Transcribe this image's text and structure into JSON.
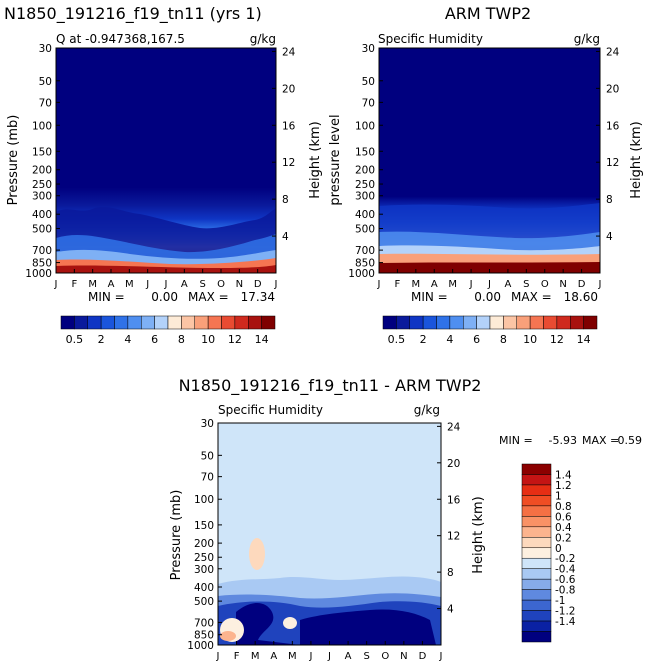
{
  "chart_data": [
    {
      "type": "heatmap",
      "title": "N1850_191216_f19_tn11 (yrs 1)",
      "subtitle_left": "Q at -0.947368,167.5",
      "subtitle_right": "g/kg",
      "ylabel": "Pressure (mb)",
      "y2label": "Height (km)",
      "months": [
        "J",
        "F",
        "M",
        "A",
        "M",
        "J",
        "J",
        "A",
        "S",
        "O",
        "N",
        "D",
        "J"
      ],
      "pressure_ticks": [
        "30",
        "50",
        "70",
        "100",
        "150",
        "200",
        "250",
        "300",
        "400",
        "500",
        "700",
        "850",
        "1000"
      ],
      "pressure_values": [
        30,
        50,
        70,
        100,
        150,
        200,
        250,
        300,
        400,
        500,
        700,
        850,
        1000
      ],
      "height_ticks": [
        "24",
        "20",
        "16",
        "12",
        "8",
        "4"
      ],
      "min_label": "MIN =",
      "min": "0.00",
      "max_label": "MAX =",
      "max": "17.34"
    },
    {
      "type": "heatmap",
      "title": "ARM TWP2",
      "subtitle_left": "Specific Humidity",
      "subtitle_right": "g/kg",
      "ylabel": "pressure level",
      "y2label": "Height (km)",
      "months": [
        "J",
        "F",
        "M",
        "A",
        "M",
        "J",
        "J",
        "A",
        "S",
        "O",
        "N",
        "D",
        "J"
      ],
      "pressure_ticks": [
        "30",
        "50",
        "70",
        "100",
        "150",
        "200",
        "250",
        "300",
        "400",
        "500",
        "700",
        "850",
        "1000"
      ],
      "pressure_values": [
        30,
        50,
        70,
        100,
        150,
        200,
        250,
        300,
        400,
        500,
        700,
        850,
        1000
      ],
      "height_ticks": [
        "24",
        "20",
        "16",
        "12",
        "8",
        "4"
      ],
      "min_label": "MIN =",
      "min": "0.00",
      "max_label": "MAX =",
      "max": "18.60"
    },
    {
      "type": "heatmap",
      "title": "N1850_191216_f19_tn11 - ARM TWP2",
      "subtitle_left": "Specific Humidity",
      "subtitle_right": "g/kg",
      "ylabel": "Pressure (mb)",
      "y2label": "Height (km)",
      "months": [
        "J",
        "F",
        "M",
        "A",
        "M",
        "J",
        "J",
        "A",
        "S",
        "O",
        "N",
        "D",
        "J"
      ],
      "pressure_ticks": [
        "30",
        "50",
        "70",
        "100",
        "150",
        "200",
        "250",
        "300",
        "400",
        "500",
        "700",
        "850",
        "1000"
      ],
      "pressure_values": [
        30,
        50,
        70,
        100,
        150,
        200,
        250,
        300,
        400,
        500,
        700,
        850,
        1000
      ],
      "height_ticks": [
        "24",
        "20",
        "16",
        "12",
        "8",
        "4"
      ],
      "min_label": "MIN =",
      "min": "-5.93",
      "max_label": "MAX =",
      "max": "0.59"
    }
  ],
  "colorbar_top": {
    "labels": [
      "0.5",
      "2",
      "4",
      "6",
      "8",
      "10",
      "12",
      "14"
    ],
    "colors": [
      "#00007f",
      "#0a1a9c",
      "#0f35c4",
      "#1a55dc",
      "#2f72e8",
      "#4f8ff0",
      "#7eb0f5",
      "#b3d2fa",
      "#fdebd7",
      "#fcc5a5",
      "#f9a07a",
      "#f57552",
      "#e94b32",
      "#cf2a1e",
      "#a8120f",
      "#7f0000"
    ]
  },
  "colorbar_diff": {
    "labels": [
      "1.4",
      "1.2",
      "1",
      "0.8",
      "0.6",
      "0.4",
      "0.2",
      "0",
      "-0.2",
      "-0.4",
      "-0.6",
      "-0.8",
      "-1",
      "-1.2",
      "-1.4"
    ],
    "colors": [
      "#8b0000",
      "#c41414",
      "#e62e14",
      "#f04d24",
      "#f57044",
      "#f99266",
      "#fcb48e",
      "#fdd9bd",
      "#fdf0e0",
      "#cfe5f9",
      "#a9c9f3",
      "#86abe9",
      "#5f89df",
      "#3c66d0",
      "#1f43bd",
      "#0a21a3",
      "#00007f"
    ]
  }
}
